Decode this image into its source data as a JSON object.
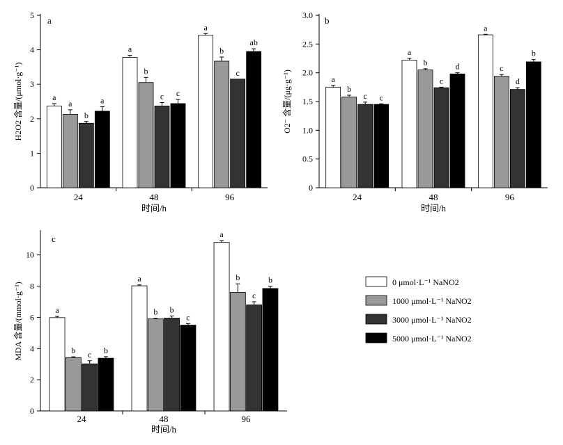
{
  "chart_data": [
    {
      "type": "bar",
      "panel_label": "a",
      "ylabel": "H2O2 含量/(μmol·g⁻¹)",
      "xlabel": "时间/h",
      "categories": [
        "24",
        "48",
        "96"
      ],
      "ylim": [
        0,
        5
      ],
      "yticks": [
        "0",
        "1",
        "2",
        "3",
        "4",
        "5"
      ],
      "series": [
        {
          "name": "0 μmol·L⁻¹ NaNO2",
          "values": [
            2.37,
            3.78,
            4.42
          ],
          "errors": [
            0.07,
            0.06,
            0.05
          ],
          "letters": [
            "a",
            "a",
            "a"
          ]
        },
        {
          "name": "1000 μmol·L⁻¹ NaNO2",
          "values": [
            2.13,
            3.05,
            3.67
          ],
          "errors": [
            0.13,
            0.15,
            0.12
          ],
          "letters": [
            "a",
            "b",
            "b"
          ]
        },
        {
          "name": "3000 μmol·L⁻¹ NaNO2",
          "values": [
            1.87,
            2.37,
            3.15
          ],
          "errors": [
            0.05,
            0.1,
            0.0
          ],
          "letters": [
            "b",
            "c",
            "c"
          ]
        },
        {
          "name": "5000 μmol·L⁻¹ NaNO2",
          "values": [
            2.22,
            2.44,
            3.95
          ],
          "errors": [
            0.13,
            0.12,
            0.08
          ],
          "letters": [
            "a",
            "c",
            "ab"
          ]
        }
      ]
    },
    {
      "type": "bar",
      "panel_label": "b",
      "ylabel": "O2⁻ 含量/(μg·g⁻¹)",
      "xlabel": "时间/h",
      "categories": [
        "24",
        "48",
        "96"
      ],
      "ylim": [
        0,
        3.0
      ],
      "yticks": [
        "0",
        "0.5",
        "1.0",
        "1.5",
        "2.0",
        "2.5",
        "3.0"
      ],
      "series": [
        {
          "name": "0 μmol·L⁻¹ NaNO2",
          "values": [
            1.75,
            2.22,
            2.66
          ],
          "errors": [
            0.03,
            0.03,
            0.01
          ],
          "letters": [
            "a",
            "a",
            "a"
          ]
        },
        {
          "name": "1000 μmol·L⁻¹ NaNO2",
          "values": [
            1.58,
            2.05,
            1.94
          ],
          "errors": [
            0.03,
            0.02,
            0.03
          ],
          "letters": [
            "b",
            "b",
            "c"
          ]
        },
        {
          "name": "3000 μmol·L⁻¹ NaNO2",
          "values": [
            1.45,
            1.74,
            1.71
          ],
          "errors": [
            0.04,
            0.01,
            0.03
          ],
          "letters": [
            "c",
            "c",
            "d"
          ]
        },
        {
          "name": "5000 μmol·L⁻¹ NaNO2",
          "values": [
            1.45,
            1.98,
            2.19
          ],
          "errors": [
            0.01,
            0.02,
            0.04
          ],
          "letters": [
            "c",
            "d",
            "b"
          ]
        }
      ]
    },
    {
      "type": "bar",
      "panel_label": "c",
      "ylabel": "MDA 含量/(mmol·g⁻¹)",
      "xlabel": "时间/h",
      "categories": [
        "24",
        "48",
        "96"
      ],
      "ylim": [
        0,
        11.5
      ],
      "yticks": [
        "0",
        "2",
        "4",
        "6",
        "8",
        "10"
      ],
      "series": [
        {
          "name": "0 μmol·L⁻¹ NaNO2",
          "values": [
            5.98,
            8.02,
            10.8
          ],
          "errors": [
            0.08,
            0.06,
            0.12
          ],
          "letters": [
            "a",
            "a",
            "a"
          ]
        },
        {
          "name": "1000 μmol·L⁻¹ NaNO2",
          "values": [
            3.42,
            5.9,
            7.6
          ],
          "errors": [
            0.05,
            0.04,
            0.55
          ],
          "letters": [
            "b",
            "b",
            "b"
          ]
        },
        {
          "name": "3000 μmol·L⁻¹ NaNO2",
          "values": [
            3.02,
            5.95,
            6.8
          ],
          "errors": [
            0.2,
            0.14,
            0.2
          ],
          "letters": [
            "c",
            "b",
            "c"
          ]
        },
        {
          "name": "5000 μmol·L⁻¹ NaNO2",
          "values": [
            3.38,
            5.5,
            7.85
          ],
          "errors": [
            0.1,
            0.1,
            0.14
          ],
          "letters": [
            "b",
            "c",
            "b"
          ]
        }
      ]
    }
  ],
  "legend": [
    {
      "name": "0 μmol·L⁻¹ NaNO2",
      "color": "#ffffff"
    },
    {
      "name": "1000 μmol·L⁻¹ NaNO2",
      "color": "#999999"
    },
    {
      "name": "3000 μmol·L⁻¹ NaNO2",
      "color": "#333333"
    },
    {
      "name": "5000 μmol·L⁻¹ NaNO2",
      "color": "#000000"
    }
  ],
  "colors": [
    "#ffffff",
    "#999999",
    "#333333",
    "#000000"
  ]
}
